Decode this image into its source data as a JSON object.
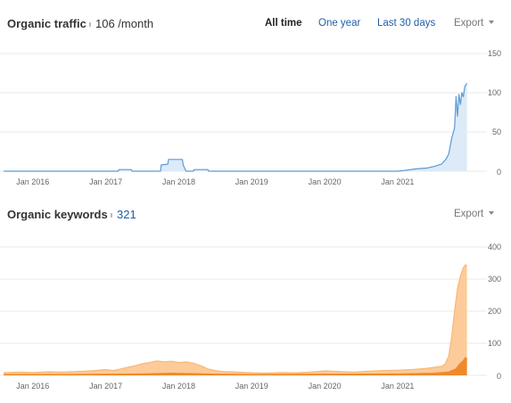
{
  "traffic": {
    "title": "Organic traffic",
    "value": "106 /month",
    "ranges": [
      "All time",
      "One year",
      "Last 30 days"
    ],
    "active_range": "All time",
    "export_label": "Export"
  },
  "keywords": {
    "title": "Organic keywords",
    "value": "321",
    "export_label": "Export"
  },
  "colors": {
    "traffic_line": "#5b9bd5",
    "traffic_fill": "#ddeaf7",
    "keywords_top": "#fccb99",
    "keywords_top_line": "#f8b877",
    "keywords_bottom": "#ef8a2a",
    "link": "#1f5ea8",
    "grid": "#e8e8e8"
  },
  "chart_data": [
    {
      "type": "area",
      "title": "Organic traffic",
      "x_tick_labels": [
        "Jan 2016",
        "Jan 2017",
        "Jan 2018",
        "Jan 2019",
        "Jan 2020",
        "Jan 2021"
      ],
      "y_tick_labels": [
        "150",
        "100",
        "50",
        "0"
      ],
      "ylim": [
        0,
        150
      ],
      "xlim": [
        2015.55,
        2022.15
      ],
      "grid": true,
      "series": [
        {
          "points": [
            [
              2015.6,
              0
            ],
            [
              2016.0,
              0
            ],
            [
              2016.5,
              0
            ],
            [
              2017.0,
              0
            ],
            [
              2017.17,
              0
            ],
            [
              2017.18,
              2
            ],
            [
              2017.35,
              2
            ],
            [
              2017.36,
              0
            ],
            [
              2017.6,
              0
            ],
            [
              2017.75,
              0
            ],
            [
              2017.76,
              8
            ],
            [
              2017.85,
              9
            ],
            [
              2017.86,
              15
            ],
            [
              2018.05,
              15
            ],
            [
              2018.06,
              8
            ],
            [
              2018.1,
              0
            ],
            [
              2018.2,
              0
            ],
            [
              2018.21,
              2
            ],
            [
              2018.4,
              2
            ],
            [
              2018.41,
              0
            ],
            [
              2019.0,
              0
            ],
            [
              2020.0,
              0
            ],
            [
              2021.0,
              0
            ],
            [
              2021.1,
              1
            ],
            [
              2021.25,
              3
            ],
            [
              2021.4,
              4
            ],
            [
              2021.5,
              6
            ],
            [
              2021.6,
              9
            ],
            [
              2021.66,
              15
            ],
            [
              2021.7,
              22
            ],
            [
              2021.74,
              42
            ],
            [
              2021.78,
              55
            ],
            [
              2021.8,
              95
            ],
            [
              2021.82,
              70
            ],
            [
              2021.84,
              98
            ],
            [
              2021.86,
              85
            ],
            [
              2021.88,
              100
            ],
            [
              2021.9,
              95
            ],
            [
              2021.92,
              108
            ],
            [
              2021.95,
              112
            ]
          ]
        }
      ]
    },
    {
      "type": "area",
      "title": "Organic keywords",
      "x_tick_labels": [
        "Jan 2016",
        "Jan 2017",
        "Jan 2018",
        "Jan 2019",
        "Jan 2020",
        "Jan 2021"
      ],
      "y_tick_labels": [
        "400",
        "300",
        "200",
        "100",
        "0"
      ],
      "ylim": [
        0,
        400
      ],
      "xlim": [
        2015.55,
        2022.15
      ],
      "grid": true,
      "series": [
        {
          "points": [
            [
              2015.6,
              8
            ],
            [
              2015.8,
              10
            ],
            [
              2016.0,
              9
            ],
            [
              2016.2,
              11
            ],
            [
              2016.4,
              10
            ],
            [
              2016.6,
              12
            ],
            [
              2016.8,
              14
            ],
            [
              2017.0,
              18
            ],
            [
              2017.1,
              15
            ],
            [
              2017.2,
              20
            ],
            [
              2017.3,
              25
            ],
            [
              2017.4,
              30
            ],
            [
              2017.5,
              36
            ],
            [
              2017.6,
              40
            ],
            [
              2017.7,
              45
            ],
            [
              2017.8,
              42
            ],
            [
              2017.9,
              44
            ],
            [
              2018.0,
              40
            ],
            [
              2018.1,
              42
            ],
            [
              2018.2,
              38
            ],
            [
              2018.3,
              30
            ],
            [
              2018.4,
              20
            ],
            [
              2018.5,
              15
            ],
            [
              2018.6,
              12
            ],
            [
              2018.8,
              10
            ],
            [
              2019.0,
              8
            ],
            [
              2019.2,
              7
            ],
            [
              2019.4,
              9
            ],
            [
              2019.6,
              8
            ],
            [
              2019.8,
              10
            ],
            [
              2020.0,
              14
            ],
            [
              2020.2,
              12
            ],
            [
              2020.4,
              10
            ],
            [
              2020.6,
              13
            ],
            [
              2020.8,
              15
            ],
            [
              2021.0,
              16
            ],
            [
              2021.2,
              18
            ],
            [
              2021.4,
              22
            ],
            [
              2021.5,
              25
            ],
            [
              2021.6,
              28
            ],
            [
              2021.65,
              35
            ],
            [
              2021.7,
              60
            ],
            [
              2021.74,
              120
            ],
            [
              2021.78,
              200
            ],
            [
              2021.82,
              270
            ],
            [
              2021.86,
              310
            ],
            [
              2021.9,
              335
            ],
            [
              2021.93,
              345
            ],
            [
              2021.95,
              340
            ]
          ]
        },
        {
          "points": [
            [
              2015.6,
              2
            ],
            [
              2016.5,
              2
            ],
            [
              2017.0,
              3
            ],
            [
              2017.5,
              4
            ],
            [
              2017.9,
              6
            ],
            [
              2018.2,
              5
            ],
            [
              2018.5,
              3
            ],
            [
              2019.0,
              2
            ],
            [
              2020.0,
              3
            ],
            [
              2021.0,
              4
            ],
            [
              2021.5,
              6
            ],
            [
              2021.7,
              10
            ],
            [
              2021.8,
              20
            ],
            [
              2021.85,
              35
            ],
            [
              2021.9,
              45
            ],
            [
              2021.93,
              55
            ],
            [
              2021.95,
              50
            ]
          ]
        }
      ]
    }
  ]
}
